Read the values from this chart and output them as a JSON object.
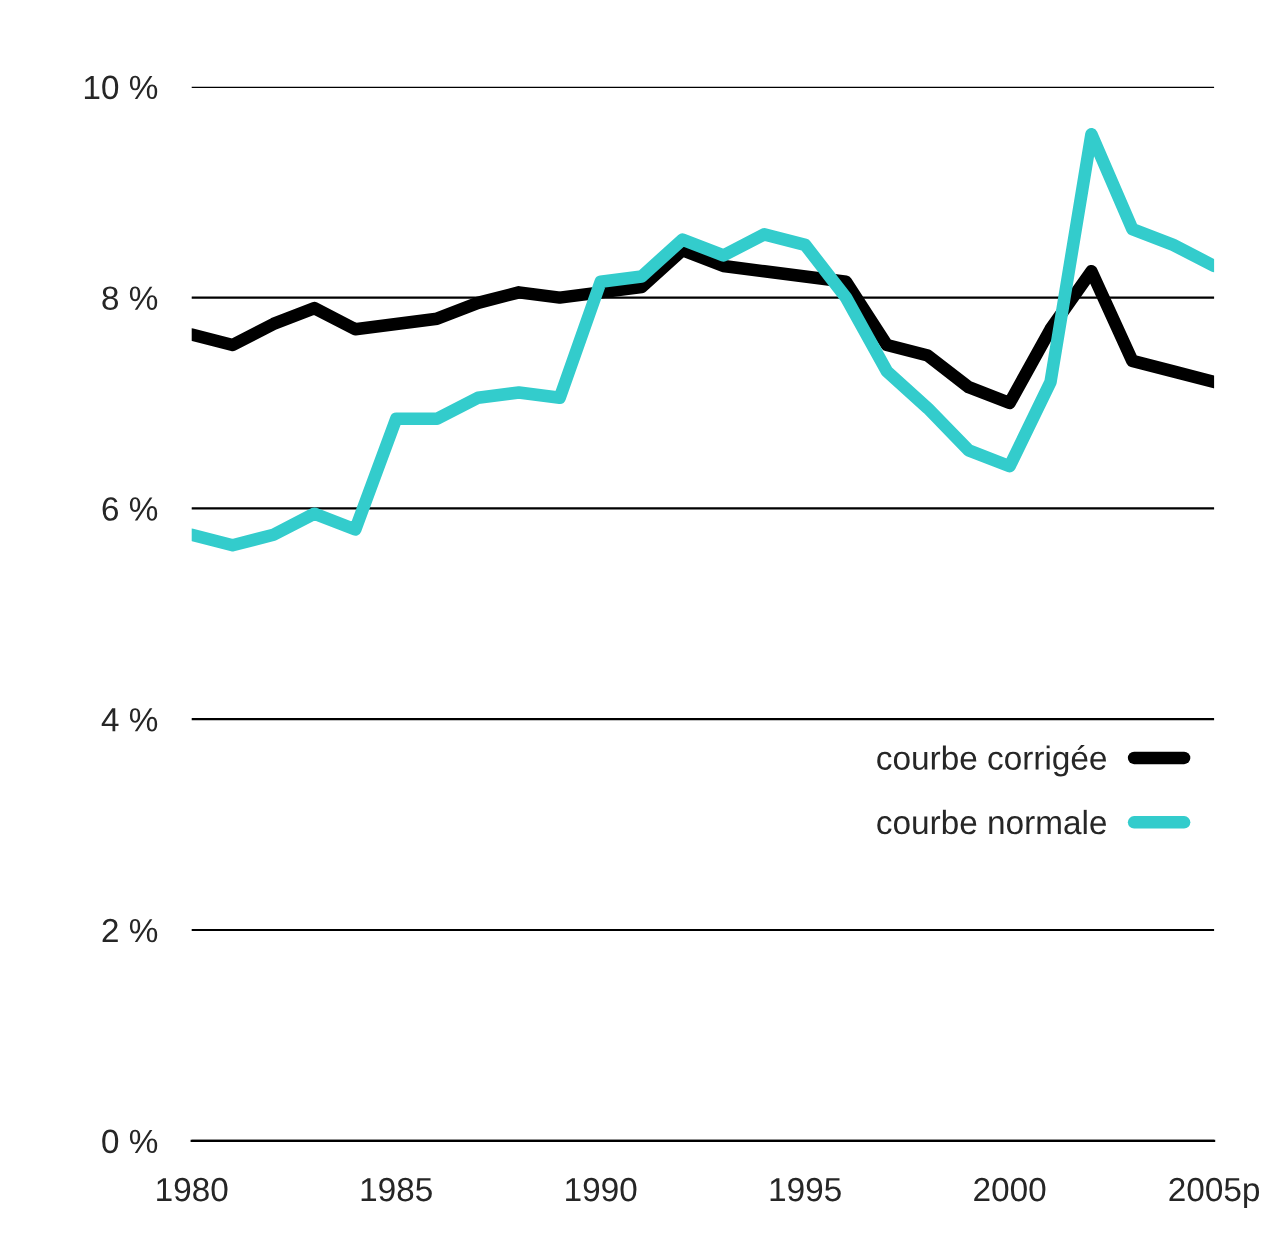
{
  "chart_data": {
    "type": "line",
    "x": [
      1980,
      1981,
      1982,
      1983,
      1984,
      1985,
      1986,
      1987,
      1988,
      1989,
      1990,
      1991,
      1992,
      1993,
      1994,
      1995,
      1996,
      1997,
      1998,
      1999,
      2000,
      2001,
      2002,
      2003,
      2004,
      2005
    ],
    "series": [
      {
        "name": "courbe corrigée",
        "color": "#000000",
        "values": [
          7.65,
          7.55,
          7.75,
          7.9,
          7.7,
          7.75,
          7.8,
          7.95,
          8.05,
          8.0,
          8.05,
          8.1,
          8.45,
          8.3,
          8.25,
          8.2,
          8.15,
          7.55,
          7.45,
          7.15,
          7.0,
          7.7,
          8.25,
          7.4,
          7.3,
          7.2
        ]
      },
      {
        "name": "courbe normale",
        "color": "#33cccc",
        "values": [
          5.75,
          5.65,
          5.75,
          5.95,
          5.8,
          6.85,
          6.85,
          7.05,
          7.1,
          7.05,
          8.15,
          8.2,
          8.55,
          8.4,
          8.6,
          8.5,
          8.0,
          7.3,
          6.95,
          6.55,
          6.4,
          7.2,
          9.55,
          8.65,
          8.5,
          8.3
        ]
      }
    ],
    "xlim": [
      1980,
      2005
    ],
    "ylim": [
      0,
      10
    ],
    "xticks": [
      1980,
      1985,
      1990,
      1995,
      2000,
      {
        "value": 2005,
        "label": "2005p"
      }
    ],
    "yticks": [
      {
        "value": 0,
        "label": "0 %"
      },
      {
        "value": 2,
        "label": "2 %"
      },
      {
        "value": 4,
        "label": "4 %"
      },
      {
        "value": 6,
        "label": "6 %"
      },
      {
        "value": 8,
        "label": "8 %"
      },
      {
        "value": 10,
        "label": "10 %"
      }
    ],
    "grid": "y",
    "legend": "right",
    "marker": "none",
    "line_style": "solid"
  }
}
